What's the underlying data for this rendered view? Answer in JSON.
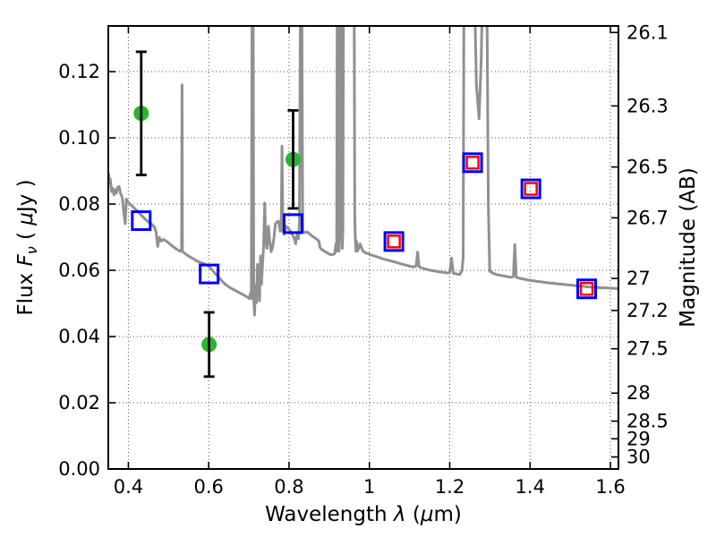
{
  "figure_title": "",
  "colors": {
    "background": "#ffffff",
    "spectrum": "#909090",
    "circle_green": "#2db42d",
    "square_blue": "#0000ff",
    "square_red": "#ff0000",
    "errorbar": "#000000",
    "grid": "#555555",
    "axis": "#000000"
  },
  "chart_data": {
    "type": "line",
    "title": "",
    "xlabel": "Wavelength λ (μm)",
    "xlabel_parts": [
      {
        "t": "Wavelength  "
      },
      {
        "t": "λ",
        "i": 1
      },
      {
        "t": " ("
      },
      {
        "t": "μ",
        "i": 1
      },
      {
        "t": "m)"
      }
    ],
    "ylabel": "Flux Fν ( μJy )",
    "ylabel_parts": [
      {
        "t": "Flux  "
      },
      {
        "t": "F",
        "i": 1
      },
      {
        "t": "ν",
        "i": 1,
        "sub": 1
      },
      {
        "t": "  ( "
      },
      {
        "t": "μ",
        "i": 1
      },
      {
        "t": "Jy )"
      }
    ],
    "ylabel_right": "Magnitude (AB)",
    "xlim": [
      0.35,
      1.62
    ],
    "ylim": [
      0.0,
      0.1338
    ],
    "grid": true,
    "legend": "none",
    "x_ticks": [
      0.4,
      0.6,
      0.8,
      1.0,
      1.2,
      1.4,
      1.6
    ],
    "x_tick_labels": [
      "0.4",
      "0.6",
      "0.8",
      "1",
      "1.2",
      "1.4",
      "1.6"
    ],
    "y_ticks_left": [
      0.0,
      0.02,
      0.04,
      0.06,
      0.08,
      0.1,
      0.12
    ],
    "y_tick_labels_left": [
      "0.00",
      "0.02",
      "0.04",
      "0.06",
      "0.08",
      "0.10",
      "0.12"
    ],
    "y_ticks_right_mag": [
      26.1,
      26.3,
      26.5,
      26.7,
      27,
      27.2,
      27.5,
      28,
      28.5,
      29,
      30
    ],
    "y_tick_labels_right": [
      "26.1",
      "26.3",
      "26.5",
      "26.7",
      "27",
      "27.2",
      "27.5",
      "28",
      "28.5",
      "29",
      "30"
    ],
    "ab_mag_zero_point_ujy": 23.9,
    "series": [
      {
        "name": "model-spectrum",
        "type": "line",
        "color": "#909090",
        "linewidth": 3,
        "points": [
          [
            0.351,
            0.0894
          ],
          [
            0.353,
            0.086
          ],
          [
            0.355,
            0.0876
          ],
          [
            0.358,
            0.0838
          ],
          [
            0.361,
            0.0848
          ],
          [
            0.364,
            0.0828
          ],
          [
            0.367,
            0.0843
          ],
          [
            0.37,
            0.0833
          ],
          [
            0.373,
            0.085
          ],
          [
            0.377,
            0.0853
          ],
          [
            0.381,
            0.083
          ],
          [
            0.385,
            0.082
          ],
          [
            0.388,
            0.078
          ],
          [
            0.392,
            0.0741
          ],
          [
            0.395,
            0.0815
          ],
          [
            0.399,
            0.0806
          ],
          [
            0.405,
            0.0799
          ],
          [
            0.412,
            0.0791
          ],
          [
            0.419,
            0.0783
          ],
          [
            0.427,
            0.0773
          ],
          [
            0.435,
            0.0763
          ],
          [
            0.443,
            0.0753
          ],
          [
            0.451,
            0.0745
          ],
          [
            0.459,
            0.0738
          ],
          [
            0.465,
            0.0731
          ],
          [
            0.469,
            0.0715
          ],
          [
            0.473,
            0.0672
          ],
          [
            0.477,
            0.0699
          ],
          [
            0.482,
            0.0688
          ],
          [
            0.487,
            0.0693
          ],
          [
            0.493,
            0.0689
          ],
          [
            0.5,
            0.0683
          ],
          [
            0.508,
            0.0675
          ],
          [
            0.516,
            0.0667
          ],
          [
            0.524,
            0.0661
          ],
          [
            0.529,
            0.0657
          ],
          [
            0.5325,
            0.0665
          ],
          [
            0.5335,
            0.116
          ],
          [
            0.5345,
            0.066
          ],
          [
            0.536,
            0.0655
          ],
          [
            0.543,
            0.0649
          ],
          [
            0.551,
            0.0642
          ],
          [
            0.56,
            0.0636
          ],
          [
            0.569,
            0.0629
          ],
          [
            0.578,
            0.0624
          ],
          [
            0.588,
            0.062
          ],
          [
            0.598,
            0.0614
          ],
          [
            0.608,
            0.0602
          ],
          [
            0.617,
            0.0589
          ],
          [
            0.626,
            0.0577
          ],
          [
            0.635,
            0.0565
          ],
          [
            0.644,
            0.0555
          ],
          [
            0.653,
            0.0548
          ],
          [
            0.662,
            0.0542
          ],
          [
            0.671,
            0.0536
          ],
          [
            0.68,
            0.053
          ],
          [
            0.689,
            0.0524
          ],
          [
            0.696,
            0.0519
          ],
          [
            0.701,
            0.0515
          ],
          [
            0.704,
            0.0531
          ],
          [
            0.706,
            0.0514
          ],
          [
            0.708,
            0.145
          ],
          [
            0.7105,
            0.145
          ],
          [
            0.712,
            0.0515
          ],
          [
            0.714,
            0.0465
          ],
          [
            0.7165,
            0.0555
          ],
          [
            0.719,
            0.0503
          ],
          [
            0.7215,
            0.0618
          ],
          [
            0.724,
            0.0558
          ],
          [
            0.7265,
            0.0508
          ],
          [
            0.729,
            0.0643
          ],
          [
            0.7315,
            0.0558
          ],
          [
            0.734,
            0.0618
          ],
          [
            0.7365,
            0.067
          ],
          [
            0.7395,
            0.0803
          ],
          [
            0.742,
            0.0688
          ],
          [
            0.745,
            0.0666
          ],
          [
            0.7485,
            0.0733
          ],
          [
            0.752,
            0.0688
          ],
          [
            0.7555,
            0.0656
          ],
          [
            0.759,
            0.067
          ],
          [
            0.7625,
            0.0698
          ],
          [
            0.766,
            0.074
          ],
          [
            0.77,
            0.0746
          ],
          [
            0.774,
            0.0748
          ],
          [
            0.778,
            0.0718
          ],
          [
            0.7805,
            0.0728
          ],
          [
            0.7825,
            0.0975
          ],
          [
            0.7845,
            0.072
          ],
          [
            0.788,
            0.0708
          ],
          [
            0.7925,
            0.0733
          ],
          [
            0.797,
            0.0728
          ],
          [
            0.802,
            0.072
          ],
          [
            0.807,
            0.071
          ],
          [
            0.8125,
            0.0698
          ],
          [
            0.8165,
            0.068
          ],
          [
            0.82,
            0.0708
          ],
          [
            0.8235,
            0.0696
          ],
          [
            0.826,
            0.0743
          ],
          [
            0.8283,
            0.145
          ],
          [
            0.8317,
            0.145
          ],
          [
            0.834,
            0.072
          ],
          [
            0.839,
            0.0714
          ],
          [
            0.845,
            0.0716
          ],
          [
            0.851,
            0.071
          ],
          [
            0.857,
            0.0704
          ],
          [
            0.863,
            0.0699
          ],
          [
            0.869,
            0.0694
          ],
          [
            0.8745,
            0.0688
          ],
          [
            0.877,
            0.067
          ],
          [
            0.88,
            0.0664
          ],
          [
            0.885,
            0.066
          ],
          [
            0.89,
            0.0656
          ],
          [
            0.896,
            0.0652
          ],
          [
            0.902,
            0.0648
          ],
          [
            0.908,
            0.0647
          ],
          [
            0.9135,
            0.065
          ],
          [
            0.9165,
            0.068
          ],
          [
            0.9185,
            0.0658
          ],
          [
            0.92,
            0.145
          ],
          [
            0.9225,
            0.145
          ],
          [
            0.9235,
            0.0678
          ],
          [
            0.9245,
            0.0658
          ],
          [
            0.926,
            0.145
          ],
          [
            0.9295,
            0.145
          ],
          [
            0.931,
            0.0698
          ],
          [
            0.9325,
            0.0666
          ],
          [
            0.934,
            0.0718
          ],
          [
            0.9355,
            0.145
          ],
          [
            0.962,
            0.145
          ],
          [
            0.9635,
            0.0758
          ],
          [
            0.965,
            0.0698
          ],
          [
            0.9665,
            0.0658
          ],
          [
            0.968,
            0.0688
          ],
          [
            0.97,
            0.0658
          ],
          [
            0.9735,
            0.0666
          ],
          [
            0.977,
            0.068
          ],
          [
            0.9805,
            0.0668
          ],
          [
            0.984,
            0.0658
          ],
          [
            0.99,
            0.0653
          ],
          [
            0.997,
            0.065
          ],
          [
            1.005,
            0.0646
          ],
          [
            1.013,
            0.0643
          ],
          [
            1.021,
            0.064
          ],
          [
            1.03,
            0.0636
          ],
          [
            1.039,
            0.0633
          ],
          [
            1.048,
            0.063
          ],
          [
            1.057,
            0.0627
          ],
          [
            1.066,
            0.0624
          ],
          [
            1.075,
            0.0621
          ],
          [
            1.084,
            0.0618
          ],
          [
            1.093,
            0.0615
          ],
          [
            1.102,
            0.0612
          ],
          [
            1.11,
            0.061
          ],
          [
            1.1165,
            0.0613
          ],
          [
            1.12,
            0.0655
          ],
          [
            1.1235,
            0.0611
          ],
          [
            1.13,
            0.0607
          ],
          [
            1.139,
            0.0604
          ],
          [
            1.148,
            0.0601
          ],
          [
            1.157,
            0.0599
          ],
          [
            1.166,
            0.0597
          ],
          [
            1.175,
            0.0595
          ],
          [
            1.184,
            0.0594
          ],
          [
            1.193,
            0.0592
          ],
          [
            1.2,
            0.0593
          ],
          [
            1.2045,
            0.0637
          ],
          [
            1.209,
            0.0591
          ],
          [
            1.217,
            0.0589
          ],
          [
            1.225,
            0.0587
          ],
          [
            1.2305,
            0.0599
          ],
          [
            1.2335,
            0.0639
          ],
          [
            1.2355,
            0.145
          ],
          [
            1.2615,
            0.145
          ],
          [
            1.2665,
            0.116
          ],
          [
            1.273,
            0.1058
          ],
          [
            1.2785,
            0.124
          ],
          [
            1.2815,
            0.145
          ],
          [
            1.2925,
            0.145
          ],
          [
            1.296,
            0.08
          ],
          [
            1.2995,
            0.0597
          ],
          [
            1.308,
            0.0591
          ],
          [
            1.317,
            0.0587
          ],
          [
            1.326,
            0.0585
          ],
          [
            1.335,
            0.0583
          ],
          [
            1.344,
            0.0581
          ],
          [
            1.353,
            0.0579
          ],
          [
            1.3585,
            0.0581
          ],
          [
            1.362,
            0.0678
          ],
          [
            1.3655,
            0.0579
          ],
          [
            1.374,
            0.0576
          ],
          [
            1.386,
            0.0573
          ],
          [
            1.398,
            0.057
          ],
          [
            1.41,
            0.0568
          ],
          [
            1.422,
            0.0566
          ],
          [
            1.434,
            0.0564
          ],
          [
            1.446,
            0.0562
          ],
          [
            1.458,
            0.0561
          ],
          [
            1.47,
            0.0559
          ],
          [
            1.482,
            0.0558
          ],
          [
            1.494,
            0.0556
          ],
          [
            1.506,
            0.0555
          ],
          [
            1.518,
            0.0553
          ],
          [
            1.53,
            0.0552
          ],
          [
            1.542,
            0.055
          ],
          [
            1.554,
            0.0549
          ],
          [
            1.566,
            0.0548
          ],
          [
            1.578,
            0.0547
          ],
          [
            1.59,
            0.0547
          ],
          [
            1.602,
            0.0546
          ],
          [
            1.614,
            0.0545
          ],
          [
            1.62,
            0.0545
          ]
        ]
      },
      {
        "name": "photometry-green-circles",
        "type": "scatter",
        "marker": "filled-circle",
        "color": "#2db42d",
        "marker_size": 17,
        "x": [
          0.432,
          0.601,
          0.81
        ],
        "y": [
          0.1074,
          0.0376,
          0.0935
        ],
        "yerr": [
          0.0186,
          0.0097,
          0.0148
        ]
      },
      {
        "name": "photometry-blue-open-squares",
        "type": "scatter",
        "marker": "open-square",
        "color": "#0000ff",
        "marker_size": 20,
        "x": [
          0.432,
          0.601,
          0.81,
          1.061,
          1.257,
          1.402,
          1.541
        ],
        "y": [
          0.075,
          0.0589,
          0.0741,
          0.0687,
          0.0925,
          0.0846,
          0.0544
        ]
      },
      {
        "name": "photometry-red-open-squares",
        "type": "scatter",
        "marker": "open-square",
        "color": "#ff0000",
        "marker_size": 13,
        "x": [
          1.061,
          1.257,
          1.402,
          1.541
        ],
        "y": [
          0.0687,
          0.0925,
          0.0846,
          0.0544
        ]
      }
    ]
  }
}
